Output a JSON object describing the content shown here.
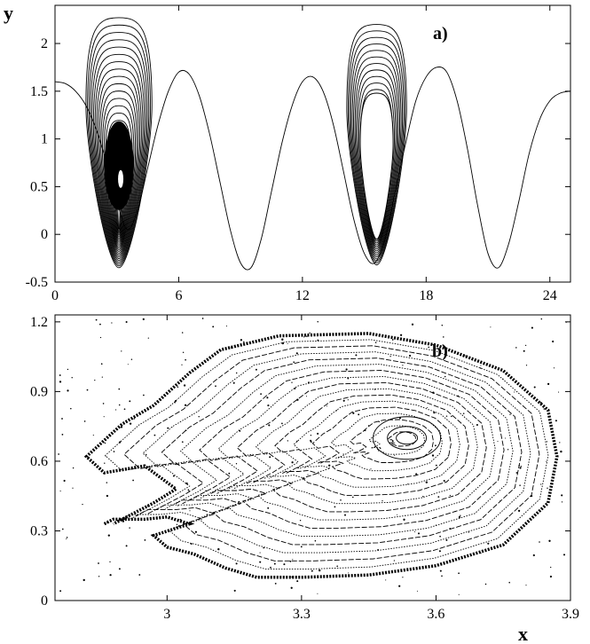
{
  "chart_data": [
    {
      "panel": "a)",
      "type": "line",
      "ylabel": "y",
      "xlim": [
        0,
        25
      ],
      "ylim": [
        -0.5,
        2.4
      ],
      "xticks": [
        "0",
        "6",
        "12",
        "18",
        "24"
      ],
      "xtick_values": [
        0,
        6,
        12,
        18,
        24
      ],
      "yticks": [
        "-0.5",
        "0",
        "0.5",
        "1",
        "1.5",
        "2"
      ],
      "ytick_values": [
        -0.5,
        0,
        0.5,
        1,
        1.5,
        2
      ],
      "grid": false,
      "series": [
        {
          "x": [
            0,
            0.5,
            1,
            1.5,
            2,
            2.5,
            3,
            3.5,
            4,
            4.5,
            5,
            5.5,
            6,
            6.5,
            7,
            7.5,
            8,
            8.5,
            9,
            9.5,
            10,
            10.5,
            11,
            11.5,
            12,
            12.5,
            13,
            13.5,
            14,
            14.5,
            15,
            15.5,
            16,
            16.5,
            17,
            17.5,
            18,
            18.5,
            19,
            19.5,
            20,
            20.5,
            21,
            21.5,
            22,
            22.5,
            23,
            23.5,
            24,
            24.5,
            25
          ],
          "y": [
            1.6,
            1.58,
            1.5,
            1.35,
            1.1,
            0.75,
            0.35,
            0.05,
            0.25,
            0.7,
            1.15,
            1.5,
            1.7,
            1.68,
            1.45,
            1.05,
            0.55,
            0.05,
            -0.3,
            -0.35,
            -0.05,
            0.45,
            0.95,
            1.35,
            1.6,
            1.65,
            1.5,
            1.15,
            0.65,
            0.15,
            -0.2,
            -0.3,
            -0.05,
            0.45,
            0.95,
            1.4,
            1.65,
            1.75,
            1.7,
            1.4,
            0.9,
            0.3,
            -0.2,
            -0.35,
            -0.1,
            0.35,
            0.85,
            1.2,
            1.4,
            1.48,
            1.5
          ]
        }
      ],
      "islands": [
        {
          "x_center": 3.1,
          "x_min": 1.6,
          "x_max": 4.8,
          "y_min": -0.35,
          "y_max": 2.27,
          "y_center": 0.58
        },
        {
          "x_center": 15.6,
          "x_min": 14.1,
          "x_max": 17.0,
          "y_min": -0.32,
          "y_max": 2.2,
          "y_center": 0.7
        }
      ]
    },
    {
      "panel": "b)",
      "type": "scatter",
      "xlabel": "x",
      "xlim": [
        2.75,
        3.9
      ],
      "ylim": [
        0,
        1.23
      ],
      "xticks": [
        "3",
        "3.3",
        "3.6",
        "3.9"
      ],
      "xtick_values": [
        3,
        3.3,
        3.6,
        3.9
      ],
      "yticks": [
        "0",
        "0.3",
        "0.6",
        "0.9",
        "1.2"
      ],
      "ytick_values": [
        0,
        0.3,
        0.6,
        0.9,
        1.2
      ],
      "grid": false,
      "series": [
        {
          "x": [
            2.86,
            2.88,
            2.95,
            3.0,
            3.05,
            2.97,
            3.0,
            3.06,
            3.13,
            3.2,
            3.3,
            3.45,
            3.6,
            3.75,
            3.85,
            3.87,
            3.85,
            3.75,
            3.6,
            3.45,
            3.25,
            3.12,
            3.05,
            2.97,
            2.9,
            2.82,
            2.86,
            2.95,
            3.02,
            2.97,
            2.88
          ],
          "y": [
            0.33,
            0.35,
            0.35,
            0.36,
            0.33,
            0.28,
            0.23,
            0.2,
            0.14,
            0.1,
            0.1,
            0.11,
            0.15,
            0.24,
            0.42,
            0.62,
            0.82,
            0.99,
            1.1,
            1.15,
            1.14,
            1.08,
            0.98,
            0.84,
            0.76,
            0.62,
            0.55,
            0.58,
            0.48,
            0.42,
            0.33
          ]
        }
      ],
      "center": {
        "x": 3.535,
        "y": 0.7
      }
    }
  ]
}
